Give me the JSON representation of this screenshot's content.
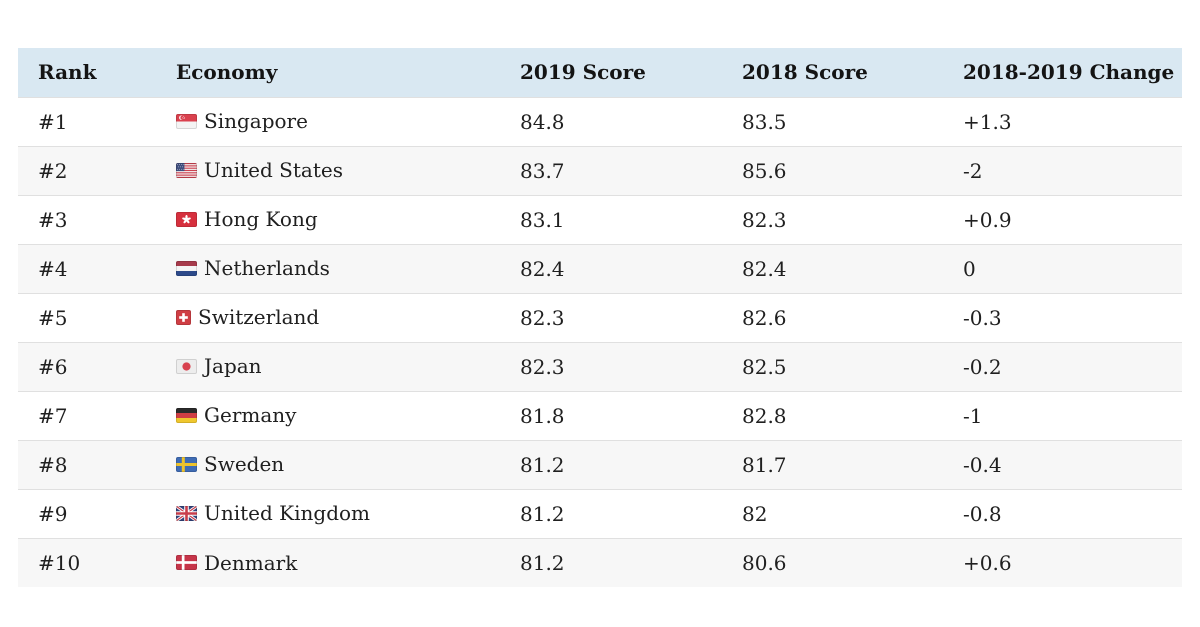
{
  "colors": {
    "header_bg": "#d9e8f2",
    "row_alt_bg": "#f7f7f7",
    "row_border": "#e0e0e0",
    "text": "#1d1d1d"
  },
  "chart_data": {
    "type": "table",
    "columns": [
      {
        "key": "rank",
        "label": "Rank"
      },
      {
        "key": "economy",
        "label": "Economy"
      },
      {
        "key": "score_2019",
        "label": "2019 Score"
      },
      {
        "key": "score_2018",
        "label": "2018 Score"
      },
      {
        "key": "change",
        "label": "2018-2019 Change"
      }
    ],
    "rows": [
      {
        "rank": "#1",
        "economy": "Singapore",
        "flag_icon": "singapore-flag-icon",
        "score_2019": "84.8",
        "score_2018": "83.5",
        "change": "+1.3"
      },
      {
        "rank": "#2",
        "economy": "United States",
        "flag_icon": "united-states-flag-icon",
        "score_2019": "83.7",
        "score_2018": "85.6",
        "change": "-2"
      },
      {
        "rank": "#3",
        "economy": "Hong Kong",
        "flag_icon": "hong-kong-flag-icon",
        "score_2019": "83.1",
        "score_2018": "82.3",
        "change": "+0.9"
      },
      {
        "rank": "#4",
        "economy": "Netherlands",
        "flag_icon": "netherlands-flag-icon",
        "score_2019": "82.4",
        "score_2018": "82.4",
        "change": "0"
      },
      {
        "rank": "#5",
        "economy": "Switzerland",
        "flag_icon": "switzerland-flag-icon",
        "score_2019": "82.3",
        "score_2018": "82.6",
        "change": "-0.3"
      },
      {
        "rank": "#6",
        "economy": "Japan",
        "flag_icon": "japan-flag-icon",
        "score_2019": "82.3",
        "score_2018": "82.5",
        "change": "-0.2"
      },
      {
        "rank": "#7",
        "economy": "Germany",
        "flag_icon": "germany-flag-icon",
        "score_2019": "81.8",
        "score_2018": "82.8",
        "change": "-1"
      },
      {
        "rank": "#8",
        "economy": "Sweden",
        "flag_icon": "sweden-flag-icon",
        "score_2019": "81.2",
        "score_2018": "81.7",
        "change": "-0.4"
      },
      {
        "rank": "#9",
        "economy": "United Kingdom",
        "flag_icon": "united-kingdom-flag-icon",
        "score_2019": "81.2",
        "score_2018": "82",
        "change": "-0.8"
      },
      {
        "rank": "#10",
        "economy": "Denmark",
        "flag_icon": "denmark-flag-icon",
        "score_2019": "81.2",
        "score_2018": "80.6",
        "change": "+0.6"
      }
    ]
  }
}
